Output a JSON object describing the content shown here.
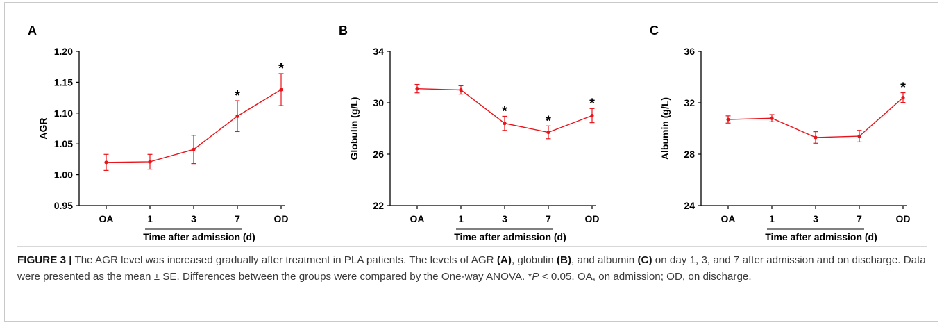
{
  "chart_data": [
    {
      "type": "line",
      "panel_label": "A",
      "ylabel": "AGR",
      "xlabel": "Time after admission (d)",
      "categories": [
        "OA",
        "1",
        "3",
        "7",
        "OD"
      ],
      "values": [
        1.02,
        1.021,
        1.041,
        1.095,
        1.138
      ],
      "errors": [
        0.013,
        0.012,
        0.023,
        0.025,
        0.026
      ],
      "significant": [
        false,
        false,
        false,
        true,
        true
      ],
      "ylim": [
        0.95,
        1.2
      ],
      "yticks": [
        "0.95",
        "1.00",
        "1.05",
        "1.10",
        "1.15",
        "1.20"
      ],
      "significance_mark": "*",
      "series_color": "#e8141b",
      "grid": false
    },
    {
      "type": "line",
      "panel_label": "B",
      "ylabel": "Globulin (g/L)",
      "xlabel": "Time after admission (d)",
      "categories": [
        "OA",
        "1",
        "3",
        "7",
        "OD"
      ],
      "values": [
        31.1,
        31.0,
        28.4,
        27.7,
        29.0
      ],
      "errors": [
        0.33,
        0.33,
        0.55,
        0.5,
        0.55
      ],
      "significant": [
        false,
        false,
        true,
        true,
        true
      ],
      "ylim": [
        22,
        34
      ],
      "yticks": [
        "22",
        "26",
        "30",
        "34"
      ],
      "significance_mark": "*",
      "series_color": "#e8141b",
      "grid": false
    },
    {
      "type": "line",
      "panel_label": "C",
      "ylabel": "Albumin (g/L)",
      "xlabel": "Time after admission (d)",
      "categories": [
        "OA",
        "1",
        "3",
        "7",
        "OD"
      ],
      "values": [
        30.7,
        30.8,
        29.3,
        29.4,
        32.4
      ],
      "errors": [
        0.28,
        0.28,
        0.45,
        0.45,
        0.38
      ],
      "significant": [
        false,
        false,
        false,
        false,
        true
      ],
      "ylim": [
        24,
        36
      ],
      "yticks": [
        "24",
        "28",
        "32",
        "36"
      ],
      "significance_mark": "*",
      "series_color": "#e8141b",
      "grid": false
    }
  ],
  "caption": {
    "label": "FIGURE 3 |",
    "part1": " The AGR level was increased gradually after treatment in PLA patients. The levels of AGR ",
    "refA": "(A)",
    "part2": ", globulin ",
    "refB": "(B)",
    "part3": ", and albumin ",
    "refC": "(C)",
    "part4": " on day 1, 3, and 7 after admission and on discharge. Data were presented as the mean ± SE. Differences between the groups were compared by the One-way ANOVA. *",
    "p_symbol": "P",
    "part5": " < 0.05. OA, on admission; OD, on discharge."
  }
}
